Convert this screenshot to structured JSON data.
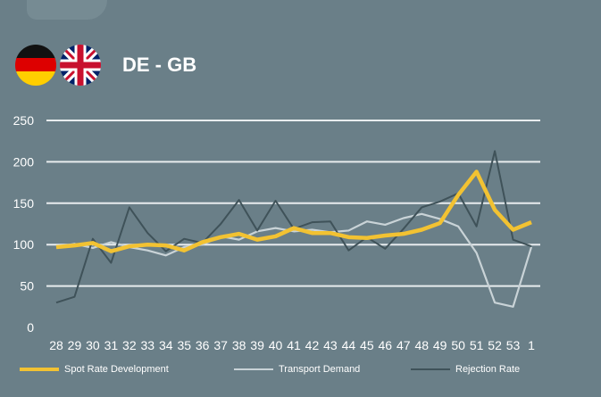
{
  "header": {
    "title": "DE - GB",
    "flags": [
      "germany-flag",
      "united-kingdom-flag"
    ]
  },
  "chart_data": {
    "type": "line",
    "title": "DE - GB",
    "categories": [
      "28",
      "29",
      "30",
      "31",
      "32",
      "33",
      "34",
      "35",
      "36",
      "37",
      "38",
      "39",
      "40",
      "41",
      "42",
      "43",
      "44",
      "45",
      "46",
      "47",
      "48",
      "49",
      "50",
      "51",
      "52",
      "53",
      "1"
    ],
    "ylim": [
      0,
      250
    ],
    "yticks": [
      0,
      50,
      100,
      150,
      200,
      250
    ],
    "grid": true,
    "legend_position": "bottom",
    "series": [
      {
        "name": "Spot Rate Development",
        "color": "#f2c232",
        "values": [
          97,
          99,
          102,
          92,
          98,
          100,
          99,
          93,
          103,
          109,
          113,
          106,
          110,
          120,
          114,
          114,
          109,
          108,
          111,
          113,
          118,
          126,
          160,
          188,
          142,
          118,
          127
        ]
      },
      {
        "name": "Transport Demand",
        "color": "#c9d3d7",
        "values": [
          97,
          101,
          96,
          103,
          97,
          93,
          87,
          97,
          100,
          110,
          106,
          116,
          120,
          116,
          118,
          115,
          117,
          128,
          124,
          132,
          137,
          131,
          122,
          90,
          30,
          25,
          97
        ]
      },
      {
        "name": "Rejection Rate",
        "color": "#3f5259",
        "values": [
          30,
          37,
          107,
          78,
          145,
          114,
          92,
          107,
          102,
          125,
          154,
          117,
          153,
          119,
          127,
          128,
          93,
          109,
          95,
          119,
          145,
          152,
          162,
          122,
          213,
          106,
          98
        ]
      }
    ]
  }
}
